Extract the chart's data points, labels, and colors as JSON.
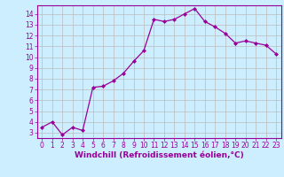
{
  "x": [
    0,
    1,
    2,
    3,
    4,
    5,
    6,
    7,
    8,
    9,
    10,
    11,
    12,
    13,
    14,
    15,
    16,
    17,
    18,
    19,
    20,
    21,
    22,
    23
  ],
  "y": [
    3.5,
    4.0,
    2.8,
    3.5,
    3.2,
    7.2,
    7.3,
    7.8,
    8.5,
    9.6,
    10.6,
    13.5,
    13.3,
    13.5,
    14.0,
    14.5,
    13.3,
    12.8,
    12.2,
    11.3,
    11.5,
    11.3,
    11.1,
    10.3
  ],
  "line_color": "#990099",
  "marker": "D",
  "markersize": 2.0,
  "linewidth": 0.9,
  "bg_color": "#cceeff",
  "grid_color": "#bbbbbb",
  "xlabel": "Windchill (Refroidissement éolien,°C)",
  "xlabel_fontsize": 6.5,
  "tick_fontsize": 5.5,
  "xlim": [
    -0.5,
    23.5
  ],
  "ylim": [
    2.5,
    14.8
  ],
  "yticks": [
    3,
    4,
    5,
    6,
    7,
    8,
    9,
    10,
    11,
    12,
    13,
    14
  ],
  "xticks": [
    0,
    1,
    2,
    3,
    4,
    5,
    6,
    7,
    8,
    9,
    10,
    11,
    12,
    13,
    14,
    15,
    16,
    17,
    18,
    19,
    20,
    21,
    22,
    23
  ]
}
